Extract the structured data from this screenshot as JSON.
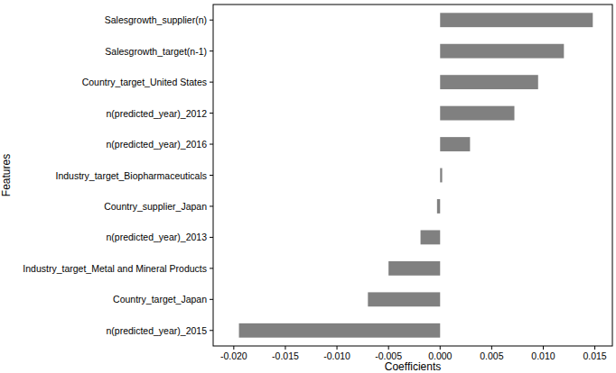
{
  "chart_data": {
    "type": "bar",
    "orientation": "horizontal",
    "x_label": "Coefficients",
    "y_label": "Features",
    "categories": [
      "Salesgrowth_supplier(n)",
      "Salesgrowth_target(n-1)",
      "Country_target_United States",
      "n(predicted_year)_2012",
      "n(predicted_year)_2016",
      "Industry_target_Biopharmaceuticals",
      "Country_supplier_Japan",
      "n(predicted_year)_2013",
      "Industry_target_Metal and Mineral Products",
      "Country_target_Japan",
      "n(predicted_year)_2015"
    ],
    "values": [
      0.0148,
      0.012,
      0.0095,
      0.0072,
      0.0029,
      0.0002,
      -0.0003,
      -0.0019,
      -0.005,
      -0.007,
      -0.0195
    ],
    "color": "#808080",
    "xlim": [
      -0.022,
      0.0167
    ],
    "xticks": [
      {
        "value": -0.02,
        "label": "-0.020"
      },
      {
        "value": -0.015,
        "label": "-0.015"
      },
      {
        "value": -0.01,
        "label": "-0.010"
      },
      {
        "value": -0.005,
        "label": "-0.005"
      },
      {
        "value": 0,
        "label": "0.000"
      },
      {
        "value": 0.005,
        "label": "0.005"
      },
      {
        "value": 0.01,
        "label": "0.010"
      },
      {
        "value": 0.015,
        "label": "0.015"
      }
    ],
    "grid": false
  }
}
